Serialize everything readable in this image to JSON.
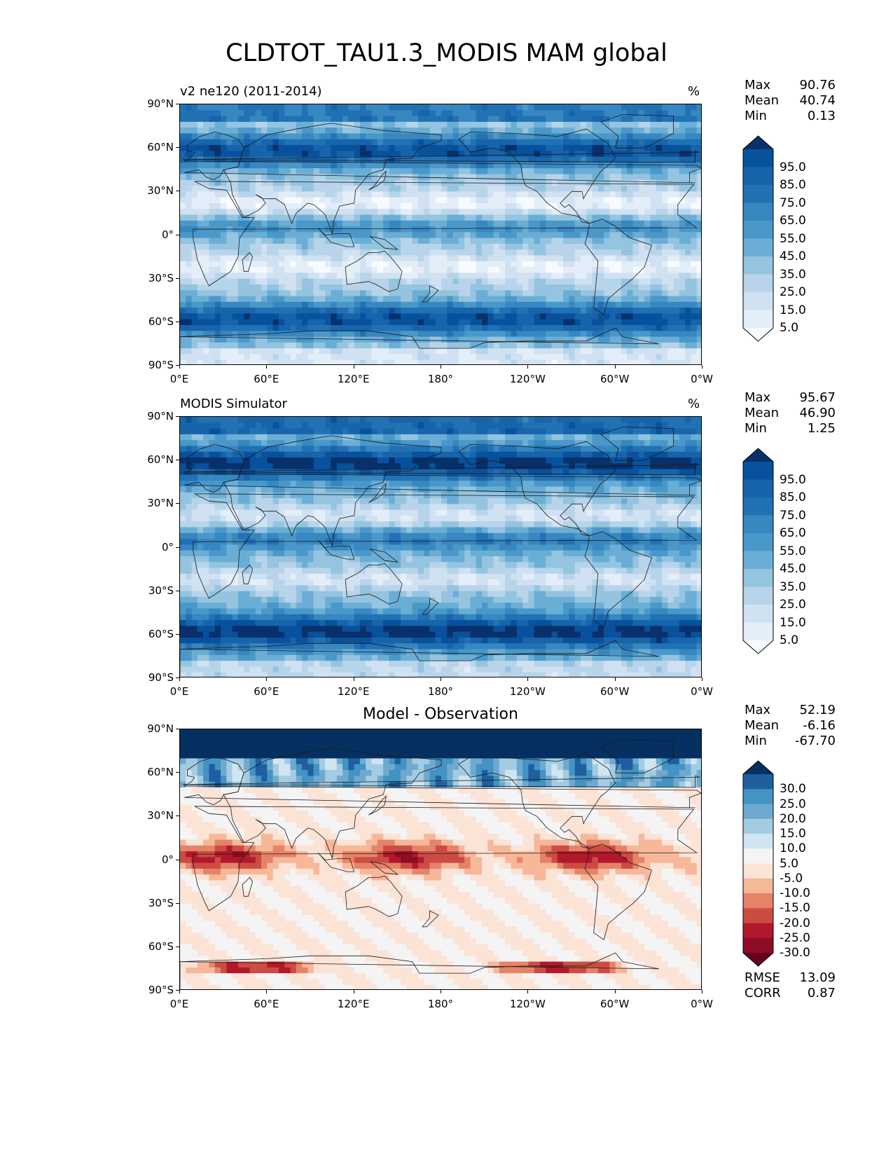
{
  "figure_title": "CLDTOT_TAU1.3_MODIS MAM global",
  "lat_labels": [
    "90°N",
    "60°N",
    "30°N",
    "0°",
    "30°S",
    "60°S",
    "90°S"
  ],
  "lon_labels": [
    "0°E",
    "60°E",
    "120°E",
    "180°",
    "120°W",
    "60°W",
    "0°W"
  ],
  "panels": [
    {
      "title_left": "v2 ne120 (2011-2014)",
      "title_right": "%",
      "title_center": "",
      "stats": [
        {
          "name": "Max",
          "value": "90.76"
        },
        {
          "name": "Mean",
          "value": "40.74"
        },
        {
          "name": "Min",
          "value": "0.13"
        }
      ],
      "colorbar_labels": [
        "95.0",
        "85.0",
        "75.0",
        "65.0",
        "55.0",
        "45.0",
        "35.0",
        "25.0",
        "15.0",
        "5.0"
      ],
      "colorbar_colors": [
        "#08306b",
        "#08519c",
        "#1764ab",
        "#2171b5",
        "#3787c0",
        "#4a98c9",
        "#6aaed6",
        "#94c4df",
        "#b7d4ea",
        "#d0e1f2",
        "#e3eef9",
        "#f7fbff"
      ]
    },
    {
      "title_left": "MODIS Simulator",
      "title_right": "%",
      "title_center": "",
      "stats": [
        {
          "name": "Max",
          "value": "95.67"
        },
        {
          "name": "Mean",
          "value": "46.90"
        },
        {
          "name": "Min",
          "value": "1.25"
        }
      ],
      "colorbar_labels": [
        "95.0",
        "85.0",
        "75.0",
        "65.0",
        "55.0",
        "45.0",
        "35.0",
        "25.0",
        "15.0",
        "5.0"
      ],
      "colorbar_colors": [
        "#08306b",
        "#08519c",
        "#1764ab",
        "#2171b5",
        "#3787c0",
        "#4a98c9",
        "#6aaed6",
        "#94c4df",
        "#b7d4ea",
        "#d0e1f2",
        "#e3eef9",
        "#f7fbff"
      ]
    },
    {
      "title_left": "",
      "title_right": "",
      "title_center": "Model - Observation",
      "stats": [
        {
          "name": "Max",
          "value": "52.19"
        },
        {
          "name": "Mean",
          "value": "-6.16"
        },
        {
          "name": "Min",
          "value": "-67.70"
        }
      ],
      "colorbar_labels": [
        "30.0",
        "25.0",
        "20.0",
        "15.0",
        "10.0",
        "5.0",
        "-5.0",
        "-10.0",
        "-15.0",
        "-20.0",
        "-25.0",
        "-30.0"
      ],
      "colorbar_colors": [
        "#053061",
        "#1f5fa0",
        "#4393c3",
        "#6eaad0",
        "#a3cce3",
        "#d1e5f0",
        "#f4f4f4",
        "#fbe3d6",
        "#f7b799",
        "#e58368",
        "#cc4c44",
        "#b2182b",
        "#8e0c25",
        "#67001f"
      ],
      "metrics": [
        {
          "name": "RMSE",
          "value": "13.09"
        },
        {
          "name": "CORR",
          "value": "0.87"
        }
      ]
    }
  ]
}
